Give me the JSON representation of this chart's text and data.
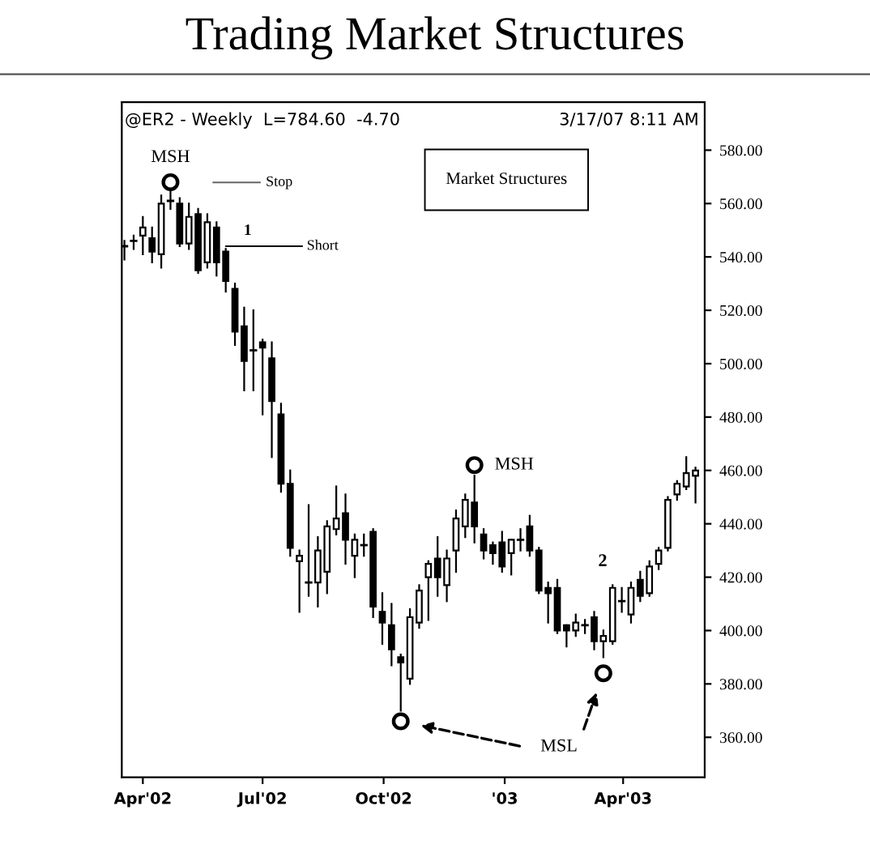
{
  "chart_data": {
    "type": "candlestick",
    "title": "Trading Market Structures",
    "x": [
      "2002-03-18",
      "2002-03-25",
      "2002-04-01",
      "2002-04-08",
      "2002-04-15",
      "2002-04-22",
      "2002-04-29",
      "2002-05-06",
      "2002-05-13",
      "2002-05-20",
      "2002-05-27",
      "2002-06-03",
      "2002-06-10",
      "2002-06-17",
      "2002-06-24",
      "2002-07-01",
      "2002-07-08",
      "2002-07-15",
      "2002-07-22",
      "2002-07-29",
      "2002-08-05",
      "2002-08-12",
      "2002-08-19",
      "2002-08-26",
      "2002-09-02",
      "2002-09-09",
      "2002-09-16",
      "2002-09-23",
      "2002-09-30",
      "2002-10-07",
      "2002-10-14",
      "2002-10-21",
      "2002-10-28",
      "2002-11-04",
      "2002-11-11",
      "2002-11-18",
      "2002-11-25",
      "2002-12-02",
      "2002-12-09",
      "2002-12-16",
      "2002-12-23",
      "2002-12-30",
      "2003-01-06",
      "2003-01-13",
      "2003-01-20",
      "2003-01-27",
      "2003-02-03",
      "2003-02-10",
      "2003-02-17",
      "2003-02-24",
      "2003-03-03",
      "2003-03-10",
      "2003-03-17",
      "2003-03-24",
      "2003-03-31",
      "2003-04-07",
      "2003-04-14",
      "2003-04-21",
      "2003-04-28",
      "2003-05-05",
      "2003-05-12",
      "2003-05-19",
      "2003-05-26"
    ],
    "ohlc": [
      [
        544,
        546,
        539,
        544
      ],
      [
        546,
        548,
        543,
        546
      ],
      [
        548,
        555,
        541,
        551
      ],
      [
        547,
        551,
        538,
        542
      ],
      [
        541,
        563,
        536,
        560
      ],
      [
        561,
        565,
        558,
        561
      ],
      [
        560,
        562,
        544,
        545
      ],
      [
        545,
        560,
        543,
        555
      ],
      [
        556,
        558,
        534,
        535
      ],
      [
        538,
        556,
        536,
        553
      ],
      [
        551,
        553,
        533,
        538
      ],
      [
        542,
        543,
        527,
        531
      ],
      [
        528,
        530,
        507,
        512
      ],
      [
        514,
        521,
        490,
        501
      ],
      [
        505,
        520,
        490,
        505
      ],
      [
        508,
        509,
        481,
        506
      ],
      [
        502,
        508,
        465,
        486
      ],
      [
        481,
        485,
        452,
        455
      ],
      [
        455,
        460,
        428,
        431
      ],
      [
        426,
        430,
        407,
        428
      ],
      [
        418,
        447,
        413,
        418
      ],
      [
        418,
        435,
        409,
        430
      ],
      [
        422,
        441,
        414,
        439
      ],
      [
        438,
        454,
        436,
        442
      ],
      [
        444,
        451,
        425,
        434
      ],
      [
        428,
        436,
        420,
        434
      ],
      [
        432,
        436,
        428,
        432
      ],
      [
        437,
        438,
        405,
        409
      ],
      [
        407,
        414,
        395,
        403
      ],
      [
        402,
        410,
        387,
        393
      ],
      [
        390,
        391,
        370,
        388
      ],
      [
        382,
        408,
        380,
        405
      ],
      [
        403,
        417,
        401,
        415
      ],
      [
        420,
        426,
        404,
        425
      ],
      [
        427,
        435,
        413,
        420
      ],
      [
        417,
        430,
        411,
        427
      ],
      [
        430,
        445,
        422,
        442
      ],
      [
        439,
        451,
        435,
        449
      ],
      [
        448,
        458,
        433,
        439
      ],
      [
        436,
        438,
        427,
        430
      ],
      [
        432,
        433,
        425,
        429
      ],
      [
        433,
        437,
        422,
        424
      ],
      [
        429,
        434,
        421,
        434
      ],
      [
        434,
        438,
        430,
        434
      ],
      [
        439,
        443,
        428,
        430
      ],
      [
        430,
        431,
        414,
        415
      ],
      [
        416,
        418,
        403,
        414
      ],
      [
        416,
        419,
        399,
        400
      ],
      [
        402,
        402,
        394,
        400
      ],
      [
        400,
        406,
        398,
        403
      ],
      [
        402,
        404,
        399,
        402
      ],
      [
        405,
        407,
        393,
        396
      ],
      [
        396,
        400,
        390,
        398
      ],
      [
        396,
        417,
        395,
        416
      ],
      [
        411,
        416,
        407,
        411
      ],
      [
        406,
        418,
        403,
        416
      ],
      [
        419,
        422,
        411,
        413
      ],
      [
        414,
        426,
        413,
        424
      ],
      [
        425,
        431,
        423,
        430
      ],
      [
        431,
        450,
        430,
        449
      ],
      [
        451,
        456,
        449,
        455
      ],
      [
        454,
        465,
        453,
        459
      ],
      [
        458,
        461,
        448,
        460
      ]
    ],
    "series": [
      {
        "type": "scatter",
        "marker": "circle",
        "color": "#000000",
        "x": [
          "2002-04-22",
          "2002-10-14",
          "2002-12-09",
          "2003-03-17"
        ],
        "values": [
          568,
          366,
          462,
          384
        ]
      }
    ],
    "xlim": [
      "2002-03-16",
      "2003-06-02"
    ],
    "xticks": [
      {
        "value": "2002-04-01",
        "label": "Apr'02"
      },
      {
        "value": "2002-07-01",
        "label": "Jul'02"
      },
      {
        "value": "2002-10-01",
        "label": "Oct'02"
      },
      {
        "value": "2003-01-01",
        "label": "'03"
      },
      {
        "value": "2003-04-01",
        "label": "Apr'03"
      }
    ],
    "ylim": [
      345,
      598
    ],
    "yticks": [
      {
        "value": 360,
        "label": "360.00"
      },
      {
        "value": 380,
        "label": "380.00"
      },
      {
        "value": 400,
        "label": "400.00"
      },
      {
        "value": 420,
        "label": "420.00"
      },
      {
        "value": 440,
        "label": "440.00"
      },
      {
        "value": 460,
        "label": "460.00"
      },
      {
        "value": 480,
        "label": "480.00"
      },
      {
        "value": 500,
        "label": "500.00"
      },
      {
        "value": 520,
        "label": "520.00"
      },
      {
        "value": 540,
        "label": "540.00"
      },
      {
        "value": 560,
        "label": "560.00"
      },
      {
        "value": 580,
        "label": "580.00"
      }
    ],
    "grid": false,
    "annotations": [
      "@ER2 - Weekly  L=784.60  -4.70",
      "3/17/07 8:11 AM",
      "Market Structures",
      "Stop",
      "2",
      "MSL",
      {
        "text": "MSH",
        "x": "2002-04-22",
        "y": 568
      },
      {
        "text": "Short",
        "x": "2002-06-03",
        "y": 544
      },
      {
        "text": "1",
        "x": "2002-06-03",
        "y": 547
      },
      {
        "text": "MSH",
        "x": "2002-12-09",
        "y": 462
      }
    ]
  }
}
